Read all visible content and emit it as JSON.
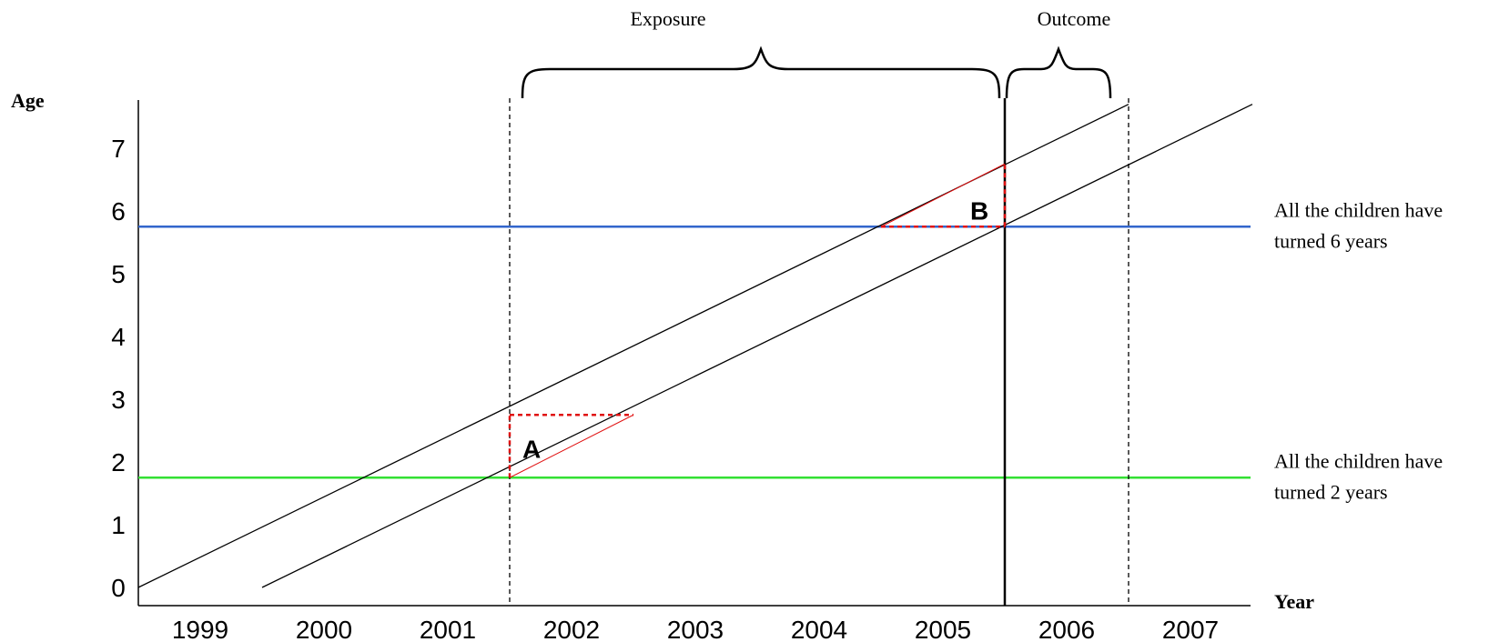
{
  "chart_data": {
    "type": "line",
    "xlabel": "Year",
    "ylabel": "Age",
    "x_tick_labels": [
      "1999",
      "2000",
      "2001",
      "2002",
      "2003",
      "2004",
      "2005",
      "2006",
      "2007"
    ],
    "y_tick_labels": [
      "0",
      "1",
      "2",
      "3",
      "4",
      "5",
      "6",
      "7"
    ],
    "xlim": [
      1998.5,
      2007.5
    ],
    "ylim": [
      0,
      7.7
    ],
    "cohort_lines": [
      {
        "x": [
          1998.5,
          2006.5
        ],
        "y": [
          0,
          7.7
        ]
      },
      {
        "x": [
          1999.5,
          2007.5
        ],
        "y": [
          0,
          7.7
        ]
      }
    ],
    "thresholds": [
      {
        "age": 1.75,
        "color": "#33e033",
        "label_line1": "All the children have",
        "label_line2": "turned 2 years"
      },
      {
        "age": 5.75,
        "color": "#3366cc",
        "label_line1": "All the children have",
        "label_line2": "turned 6 years"
      }
    ],
    "periods": [
      {
        "label": "Exposure",
        "from": 2001.5,
        "to": 2005.5
      },
      {
        "label": "Outcome",
        "from": 2005.5,
        "to": 2006.5
      }
    ],
    "regions": [
      {
        "label": "A"
      },
      {
        "label": "B"
      }
    ]
  }
}
